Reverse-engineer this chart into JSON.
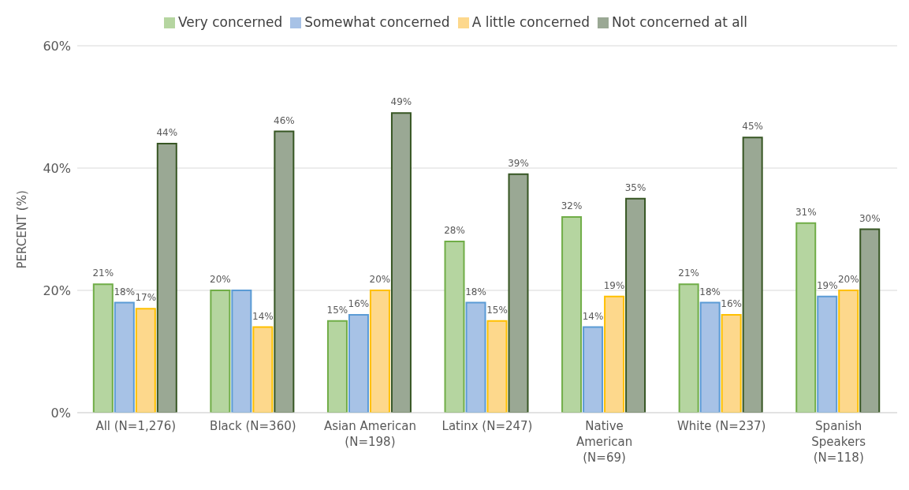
{
  "chart_data": {
    "type": "bar",
    "ylabel": "PERCENT (%)",
    "categories": [
      "All (N=1,276)",
      "Black (N=360)",
      "Asian American (N=198)",
      "Latinx (N=247)",
      "Native American (N=69)",
      "White (N=237)",
      "Spanish Speakers (N=118)"
    ],
    "series": [
      {
        "name": "Very concerned",
        "color": "#b5d5a0",
        "values": [
          21,
          20,
          15,
          28,
          32,
          21,
          31
        ],
        "value_labels": [
          "21%",
          "20%",
          "15%",
          "28%",
          "32%",
          "21%",
          "31%"
        ]
      },
      {
        "name": "Somewhat concerned",
        "color": "#a7c2e6",
        "values": [
          18,
          20,
          16,
          18,
          14,
          18,
          19
        ],
        "value_labels": [
          "18%",
          null,
          "16%",
          "18%",
          "14%",
          "18%",
          "19%"
        ]
      },
      {
        "name": "A little concerned",
        "color": "#fdd88c",
        "values": [
          17,
          14,
          20,
          15,
          19,
          16,
          20
        ],
        "value_labels": [
          "17%",
          "14%",
          "20%",
          "15%",
          "19%",
          "16%",
          "20%"
        ]
      },
      {
        "name": "Not concerned at all",
        "color": "#9aa894",
        "values": [
          44,
          46,
          49,
          39,
          35,
          45,
          30
        ],
        "value_labels": [
          "44%",
          "46%",
          "49%",
          "39%",
          "35%",
          "45%",
          "30%"
        ]
      }
    ],
    "ylim": [
      0,
      60
    ],
    "yticks": [
      {
        "value": 0,
        "label": "0%"
      },
      {
        "value": 20,
        "label": "20%"
      },
      {
        "value": 40,
        "label": "40%"
      },
      {
        "value": 60,
        "label": "60%"
      }
    ],
    "grid": "y",
    "legend": "top"
  }
}
